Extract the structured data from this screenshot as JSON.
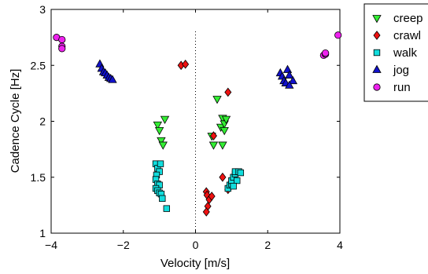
{
  "chart_data": {
    "type": "scatter",
    "xlabel": "Velocity [m/s]",
    "ylabel": "Cadence Cycle [Hz]",
    "xlim": [
      -4,
      4
    ],
    "ylim": [
      1,
      3
    ],
    "xticks": [
      -4,
      -2,
      0,
      2,
      4
    ],
    "xtick_labels": [
      "−4",
      "−2",
      "0",
      "2",
      "4"
    ],
    "yticks": [
      1,
      1.5,
      2,
      2.5,
      3
    ],
    "ytick_labels": [
      "1",
      "1.5",
      "2",
      "2.5",
      "3"
    ],
    "grid": false,
    "legend_position": "outside-top-right",
    "reference_line": {
      "x": 0,
      "style": "dotted"
    },
    "series": [
      {
        "name": "creep",
        "marker": "triangle-down",
        "color": "#33ee33",
        "points": [
          [
            -1.05,
            1.97
          ],
          [
            -0.85,
            2.02
          ],
          [
            -1.0,
            1.92
          ],
          [
            -0.95,
            1.83
          ],
          [
            -0.9,
            1.79
          ],
          [
            0.45,
            1.87
          ],
          [
            0.5,
            1.79
          ],
          [
            0.6,
            2.2
          ],
          [
            0.7,
            1.95
          ],
          [
            0.75,
            2.03
          ],
          [
            0.8,
            1.98
          ],
          [
            0.85,
            2.02
          ],
          [
            0.8,
            1.92
          ],
          [
            0.75,
            1.79
          ]
        ]
      },
      {
        "name": "crawl",
        "marker": "diamond",
        "color": "#ee1111",
        "points": [
          [
            -0.4,
            2.5
          ],
          [
            -0.28,
            2.51
          ],
          [
            0.9,
            2.26
          ],
          [
            0.5,
            1.87
          ],
          [
            0.75,
            1.5
          ],
          [
            0.9,
            1.39
          ],
          [
            0.3,
            1.37
          ],
          [
            0.32,
            1.34
          ],
          [
            0.38,
            1.3
          ],
          [
            0.34,
            1.24
          ],
          [
            0.3,
            1.19
          ],
          [
            0.45,
            1.33
          ]
        ]
      },
      {
        "name": "walk",
        "marker": "square",
        "color": "#11dddd",
        "points": [
          [
            -1.1,
            1.62
          ],
          [
            -1.05,
            1.58
          ],
          [
            -0.97,
            1.62
          ],
          [
            -1.0,
            1.55
          ],
          [
            -1.08,
            1.52
          ],
          [
            -1.1,
            1.48
          ],
          [
            -1.05,
            1.44
          ],
          [
            -1.0,
            1.43
          ],
          [
            -1.1,
            1.4
          ],
          [
            -1.05,
            1.38
          ],
          [
            -1.0,
            1.36
          ],
          [
            -0.95,
            1.35
          ],
          [
            -0.92,
            1.31
          ],
          [
            -0.8,
            1.22
          ],
          [
            0.9,
            1.4
          ],
          [
            0.95,
            1.43
          ],
          [
            1.0,
            1.44
          ],
          [
            1.0,
            1.47
          ],
          [
            1.05,
            1.5
          ],
          [
            1.1,
            1.53
          ],
          [
            1.1,
            1.55
          ],
          [
            1.2,
            1.55
          ],
          [
            1.25,
            1.54
          ],
          [
            1.15,
            1.47
          ],
          [
            1.05,
            1.42
          ]
        ]
      },
      {
        "name": "jog",
        "marker": "triangle-up",
        "color": "#1111cc",
        "points": [
          [
            -2.65,
            2.51
          ],
          [
            -2.6,
            2.47
          ],
          [
            -2.55,
            2.44
          ],
          [
            -2.5,
            2.43
          ],
          [
            -2.45,
            2.41
          ],
          [
            -2.4,
            2.39
          ],
          [
            -2.35,
            2.38
          ],
          [
            -2.3,
            2.37
          ],
          [
            2.35,
            2.43
          ],
          [
            2.4,
            2.4
          ],
          [
            2.45,
            2.36
          ],
          [
            2.5,
            2.34
          ],
          [
            2.55,
            2.46
          ],
          [
            2.6,
            2.41
          ],
          [
            2.7,
            2.36
          ],
          [
            2.6,
            2.32
          ]
        ]
      },
      {
        "name": "run",
        "marker": "circle",
        "color": "#ee22ee",
        "points": [
          [
            -3.85,
            2.75
          ],
          [
            -3.7,
            2.73
          ],
          [
            -3.7,
            2.67
          ],
          [
            -3.7,
            2.65
          ],
          [
            3.55,
            2.59
          ],
          [
            3.6,
            2.6
          ],
          [
            3.6,
            2.61
          ],
          [
            3.95,
            2.77
          ]
        ]
      }
    ]
  }
}
